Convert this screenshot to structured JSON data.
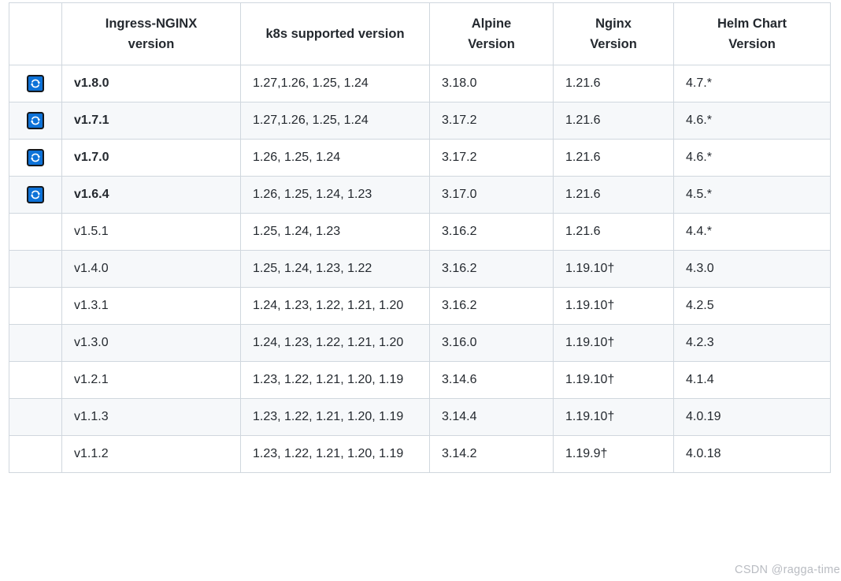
{
  "table": {
    "headers": [
      {
        "id": "icon",
        "label": ""
      },
      {
        "id": "ingress-version",
        "label": "Ingress-NGINX version"
      },
      {
        "id": "k8s-supported",
        "label": "k8s supported version"
      },
      {
        "id": "alpine",
        "label": "Alpine Version"
      },
      {
        "id": "nginx",
        "label": "Nginx Version"
      },
      {
        "id": "helm-chart",
        "label": "Helm Chart Version"
      }
    ],
    "supported_icon": "sync-icon",
    "rows": [
      {
        "supported": true,
        "version": "v1.8.0",
        "k8s": "1.27,1.26, 1.25, 1.24",
        "alpine": "3.18.0",
        "nginx": "1.21.6",
        "helm": "4.7.*"
      },
      {
        "supported": true,
        "version": "v1.7.1",
        "k8s": "1.27,1.26, 1.25, 1.24",
        "alpine": "3.17.2",
        "nginx": "1.21.6",
        "helm": "4.6.*"
      },
      {
        "supported": true,
        "version": "v1.7.0",
        "k8s": "1.26, 1.25, 1.24",
        "alpine": "3.17.2",
        "nginx": "1.21.6",
        "helm": "4.6.*"
      },
      {
        "supported": true,
        "version": "v1.6.4",
        "k8s": "1.26, 1.25, 1.24, 1.23",
        "alpine": "3.17.0",
        "nginx": "1.21.6",
        "helm": "4.5.*"
      },
      {
        "supported": false,
        "version": "v1.5.1",
        "k8s": "1.25, 1.24, 1.23",
        "alpine": "3.16.2",
        "nginx": "1.21.6",
        "helm": "4.4.*"
      },
      {
        "supported": false,
        "version": "v1.4.0",
        "k8s": "1.25, 1.24, 1.23, 1.22",
        "alpine": "3.16.2",
        "nginx": "1.19.10†",
        "helm": "4.3.0"
      },
      {
        "supported": false,
        "version": "v1.3.1",
        "k8s": "1.24, 1.23, 1.22, 1.21, 1.20",
        "alpine": "3.16.2",
        "nginx": "1.19.10†",
        "helm": "4.2.5"
      },
      {
        "supported": false,
        "version": "v1.3.0",
        "k8s": "1.24, 1.23, 1.22, 1.21, 1.20",
        "alpine": "3.16.0",
        "nginx": "1.19.10†",
        "helm": "4.2.3"
      },
      {
        "supported": false,
        "version": "v1.2.1",
        "k8s": "1.23, 1.22, 1.21, 1.20, 1.19",
        "alpine": "3.14.6",
        "nginx": "1.19.10†",
        "helm": "4.1.4"
      },
      {
        "supported": false,
        "version": "v1.1.3",
        "k8s": "1.23, 1.22, 1.21, 1.20, 1.19",
        "alpine": "3.14.4",
        "nginx": "1.19.10†",
        "helm": "4.0.19"
      },
      {
        "supported": false,
        "version": "v1.1.2",
        "k8s": "1.23, 1.22, 1.21, 1.20, 1.19",
        "alpine": "3.14.2",
        "nginx": "1.19.9†",
        "helm": "4.0.18"
      }
    ]
  },
  "watermark": "CSDN @ragga-time",
  "colors": {
    "icon_blue": "#0d72d8",
    "icon_border": "#15181c",
    "table_border": "#d0d7de",
    "row_stripe": "#f6f8fa",
    "text": "#24292f",
    "watermark_gray": "#b9bcc2"
  }
}
